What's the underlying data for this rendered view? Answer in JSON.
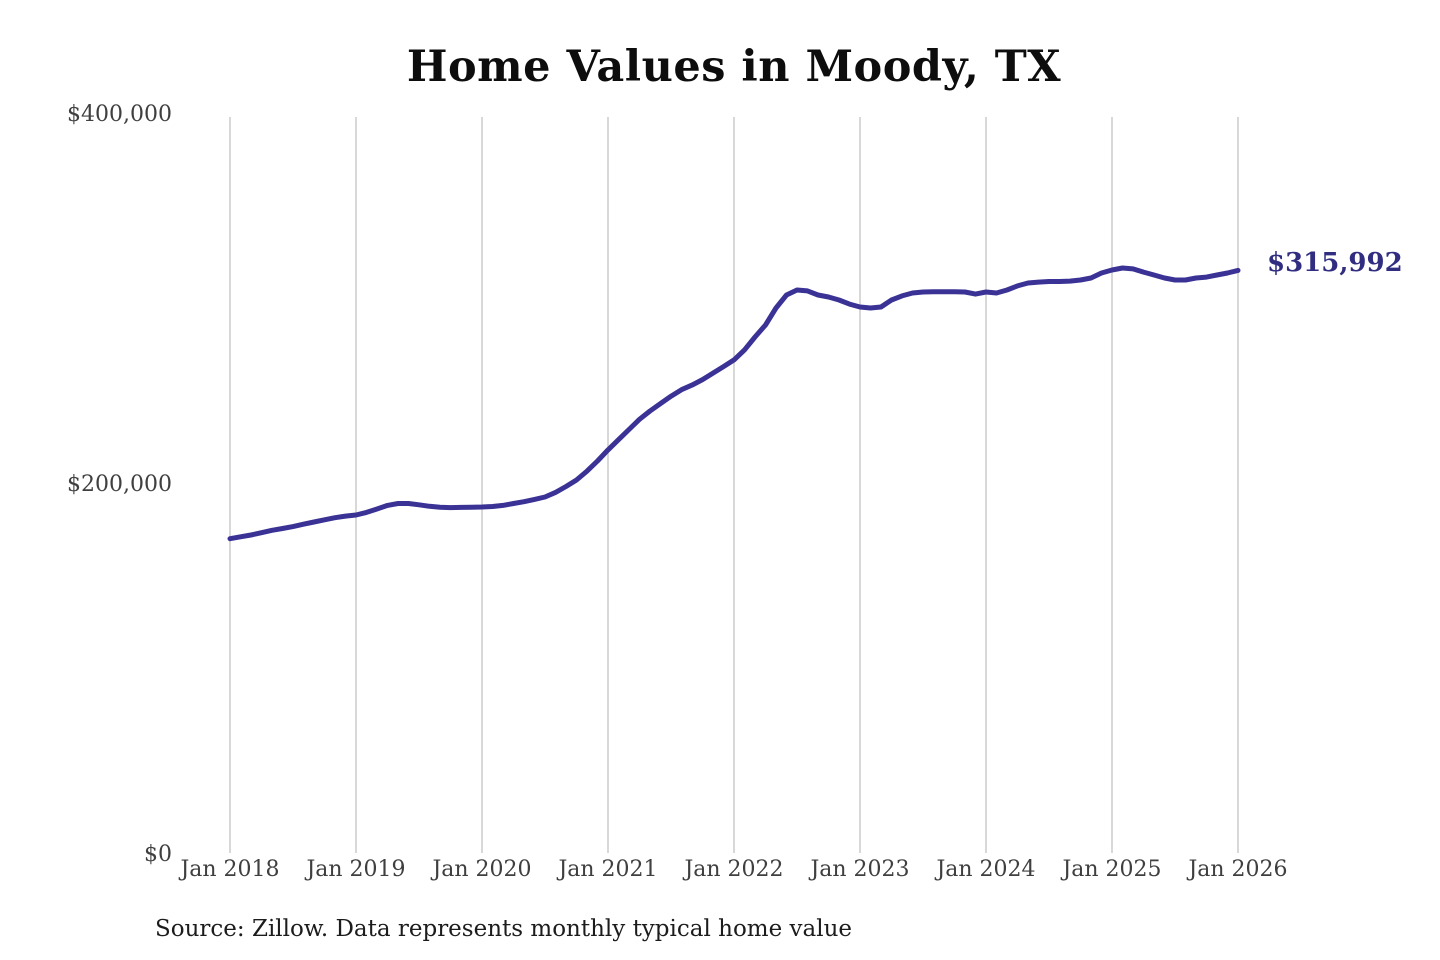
{
  "chart": {
    "title": "Home Values in Moody, TX",
    "end_label": "$315,992",
    "source": "Source: Zillow. Data represents monthly typical home value"
  },
  "chart_data": {
    "type": "line",
    "title": "Home Values in Moody, TX",
    "xlabel": "",
    "ylabel": "",
    "ylim": [
      0,
      400000
    ],
    "grid": "vertical-only",
    "legend": "none",
    "line_color": "#3b3295",
    "gridline_color": "#cccccc",
    "annotation": {
      "text": "$315,992",
      "value": 315992,
      "position": "end-of-line"
    },
    "source_note": "Source: Zillow. Data represents monthly typical home value",
    "yticks": {
      "values": [
        0,
        200000,
        400000
      ],
      "labels": [
        "$0",
        "$200,000",
        "$400,000"
      ]
    },
    "xticks": {
      "values": [
        "2018-01",
        "2019-01",
        "2020-01",
        "2021-01",
        "2022-01",
        "2023-01",
        "2024-01",
        "2025-01",
        "2026-01"
      ],
      "labels": [
        "Jan 2018",
        "Jan 2019",
        "Jan 2020",
        "Jan 2021",
        "Jan 2022",
        "Jan 2023",
        "Jan 2024",
        "Jan 2025",
        "Jan 2026"
      ]
    },
    "x": [
      "2018-01",
      "2018-02",
      "2018-03",
      "2018-04",
      "2018-05",
      "2018-06",
      "2018-07",
      "2018-08",
      "2018-09",
      "2018-10",
      "2018-11",
      "2018-12",
      "2019-01",
      "2019-02",
      "2019-03",
      "2019-04",
      "2019-05",
      "2019-06",
      "2019-07",
      "2019-08",
      "2019-09",
      "2019-10",
      "2019-11",
      "2019-12",
      "2020-01",
      "2020-02",
      "2020-03",
      "2020-04",
      "2020-05",
      "2020-06",
      "2020-07",
      "2020-08",
      "2020-09",
      "2020-10",
      "2020-11",
      "2020-12",
      "2021-01",
      "2021-02",
      "2021-03",
      "2021-04",
      "2021-05",
      "2021-06",
      "2021-07",
      "2021-08",
      "2021-09",
      "2021-10",
      "2021-11",
      "2021-12",
      "2022-01",
      "2022-02",
      "2022-03",
      "2022-04",
      "2022-05",
      "2022-06",
      "2022-07",
      "2022-08",
      "2022-09",
      "2022-10",
      "2022-11",
      "2022-12",
      "2023-01",
      "2023-02",
      "2023-03",
      "2023-04",
      "2023-05",
      "2023-06",
      "2023-07",
      "2023-08",
      "2023-09",
      "2023-10",
      "2023-11",
      "2023-12",
      "2024-01",
      "2024-02",
      "2024-03",
      "2024-04",
      "2024-05",
      "2024-06",
      "2024-07",
      "2024-08",
      "2024-09",
      "2024-10",
      "2024-11",
      "2024-12",
      "2025-01",
      "2025-02",
      "2025-03",
      "2025-04",
      "2025-05",
      "2025-06",
      "2025-07",
      "2025-08",
      "2025-09",
      "2025-10",
      "2025-11",
      "2025-12",
      "2026-01"
    ],
    "values": [
      171000,
      172000,
      173000,
      174200,
      175500,
      176500,
      177500,
      178800,
      180000,
      181200,
      182300,
      183200,
      183800,
      185200,
      187000,
      189000,
      190000,
      190000,
      189300,
      188500,
      188000,
      187800,
      187900,
      188000,
      188100,
      188400,
      189000,
      190000,
      191000,
      192200,
      193500,
      196000,
      199200,
      202700,
      207500,
      213000,
      219000,
      224500,
      230000,
      235500,
      240000,
      244000,
      248000,
      251500,
      254000,
      257000,
      260500,
      264000,
      267600,
      273000,
      280000,
      286500,
      295700,
      302700,
      305400,
      304900,
      302700,
      301600,
      300000,
      297800,
      296200,
      295700,
      296200,
      300000,
      302200,
      303800,
      304300,
      304500,
      304500,
      304500,
      304300,
      303200,
      304300,
      303800,
      305400,
      307600,
      309200,
      309700,
      310000,
      310000,
      310200,
      310800,
      311900,
      314600,
      316200,
      317300,
      316800,
      315100,
      313500,
      311900,
      310800,
      310800,
      311900,
      312400,
      313500,
      314600,
      315992
    ]
  }
}
